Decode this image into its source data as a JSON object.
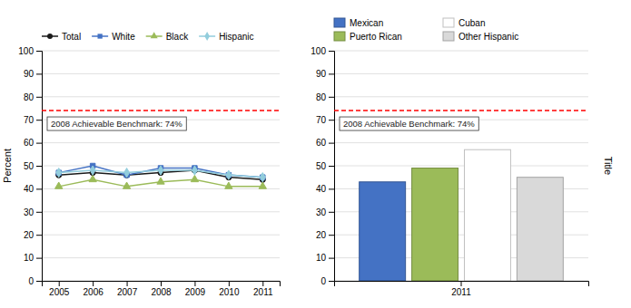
{
  "chart_data": [
    {
      "type": "line",
      "x": [
        2005,
        2006,
        2007,
        2008,
        2009,
        2010,
        2011
      ],
      "xlim": [
        2004.5,
        2011.5
      ],
      "xticks": [
        2005,
        2006,
        2007,
        2008,
        2009,
        2010,
        2011
      ],
      "ylabel": "Percent",
      "ylim": [
        0,
        100
      ],
      "yticks": [
        0,
        10,
        20,
        30,
        40,
        50,
        60,
        70,
        80,
        90,
        100
      ],
      "grid": true,
      "legend": "top",
      "series": [
        {
          "name": "Total",
          "color": "#1a1a1a",
          "marker": "circle",
          "values": [
            46,
            47,
            46,
            47,
            48,
            45,
            44
          ]
        },
        {
          "name": "White",
          "color": "#4472c4",
          "marker": "square",
          "values": [
            47,
            50,
            46,
            49,
            49,
            46,
            45
          ]
        },
        {
          "name": "Black",
          "color": "#9bbb59",
          "marker": "triangle",
          "values": [
            41,
            44,
            41,
            43,
            44,
            41,
            41
          ]
        },
        {
          "name": "Hispanic",
          "color": "#92cddc",
          "marker": "diamond",
          "values": [
            47,
            48,
            47,
            48,
            48,
            46,
            45
          ]
        }
      ],
      "benchmark": {
        "value": 74,
        "label": "2008 Achievable Benchmark: 74%",
        "color": "red",
        "line_style": "dashed"
      }
    },
    {
      "type": "bar",
      "categories": [
        "2011"
      ],
      "y2label": "Title",
      "ylim": [
        0,
        100
      ],
      "yticks": [
        0,
        10,
        20,
        30,
        40,
        50,
        60,
        70,
        80,
        90,
        100
      ],
      "grid": true,
      "legend": "top",
      "series": [
        {
          "name": "Mexican",
          "color": "#4472c4",
          "values": [
            43
          ]
        },
        {
          "name": "Puerto Rican",
          "color": "#9bbb59",
          "values": [
            49
          ]
        },
        {
          "name": "Cuban",
          "color": "#ffffff",
          "values": [
            57
          ]
        },
        {
          "name": "Other Hispanic",
          "color": "#d9d9d9",
          "values": [
            45
          ]
        }
      ],
      "benchmark": {
        "value": 74,
        "label": "2008 Achievable Benchmark: 74%",
        "color": "red",
        "line_style": "dashed"
      }
    }
  ]
}
